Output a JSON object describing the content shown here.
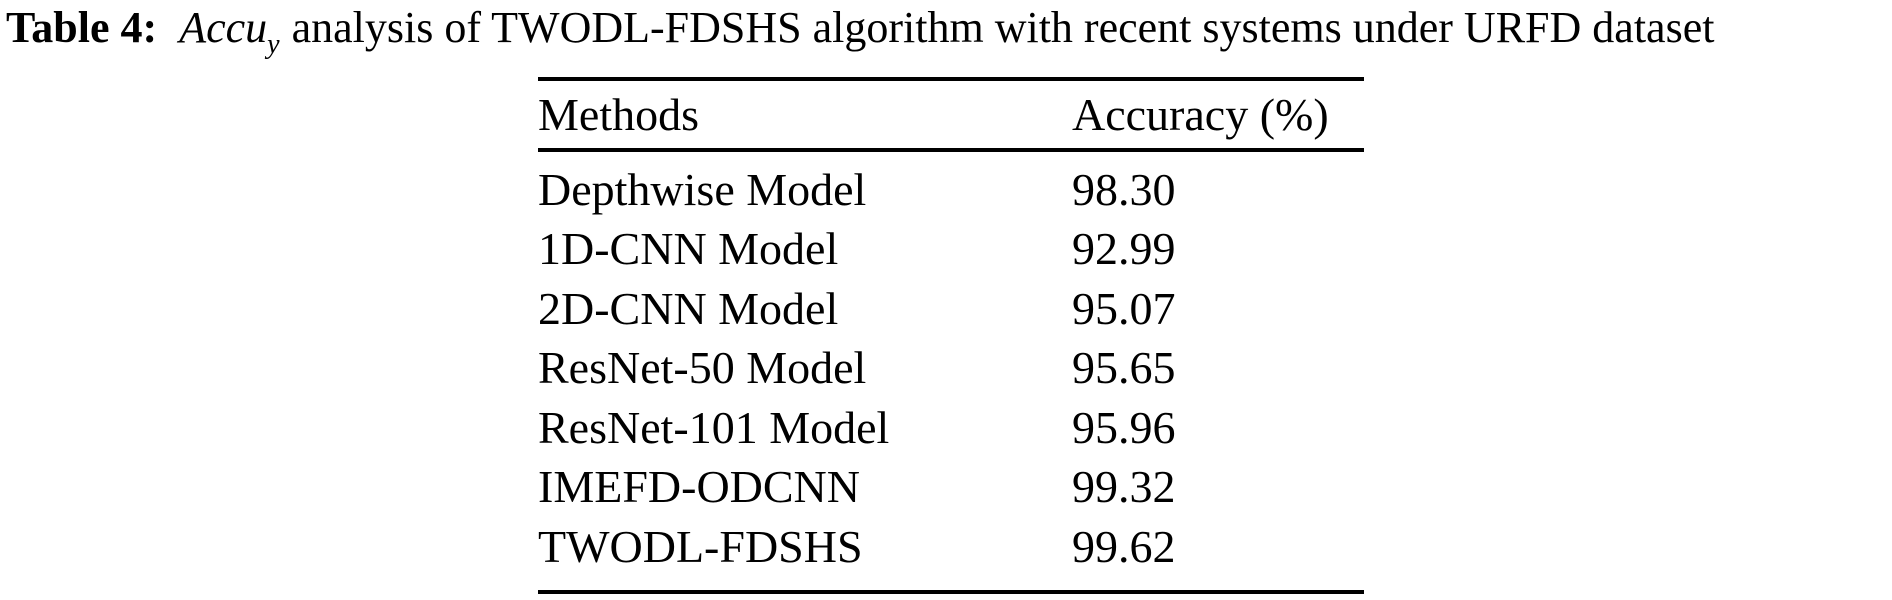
{
  "caption": {
    "label": "Table 4:",
    "metric": "Accu",
    "metric_subscript": "y",
    "text": "analysis of TWODL-FDSHS algorithm with recent systems under URFD dataset"
  },
  "table": {
    "columns": [
      "Methods",
      "Accuracy (%)"
    ],
    "rows": [
      {
        "method": "Depthwise Model",
        "accuracy": "98.30"
      },
      {
        "method": "1D-CNN Model",
        "accuracy": "92.99"
      },
      {
        "method": "2D-CNN Model",
        "accuracy": "95.07"
      },
      {
        "method": "ResNet-50 Model",
        "accuracy": "95.65"
      },
      {
        "method": "ResNet-101 Model",
        "accuracy": "95.96"
      },
      {
        "method": "IMEFD-ODCNN",
        "accuracy": "99.32"
      },
      {
        "method": "TWODL-FDSHS",
        "accuracy": "99.62"
      }
    ]
  },
  "chart_data": {
    "type": "table",
    "title": "Table 4: Accuy analysis of TWODL-FDSHS algorithm with recent systems under URFD dataset",
    "columns": [
      "Methods",
      "Accuracy (%)"
    ],
    "categories": [
      "Depthwise Model",
      "1D-CNN Model",
      "2D-CNN Model",
      "ResNet-50 Model",
      "ResNet-101 Model",
      "IMEFD-ODCNN",
      "TWODL-FDSHS"
    ],
    "values": [
      98.3,
      92.99,
      95.07,
      95.65,
      95.96,
      99.32,
      99.62
    ]
  },
  "colors": {
    "background": "#ffffff",
    "text": "#000000",
    "rule": "#000000"
  }
}
